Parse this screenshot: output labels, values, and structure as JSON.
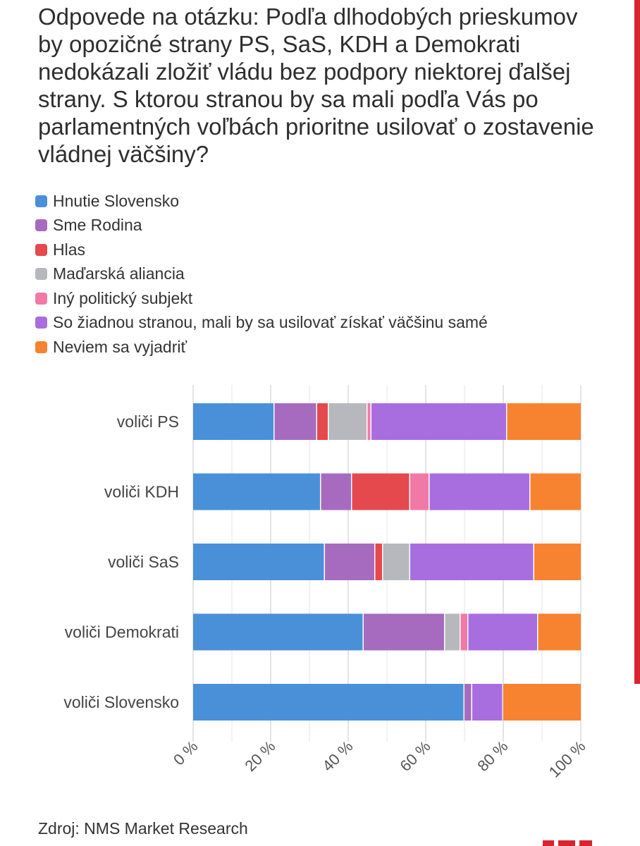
{
  "brand_color": "#d8242f",
  "chart_data": {
    "type": "bar",
    "orientation": "horizontal",
    "stacked": true,
    "title": "Odpovede na otázku: Podľa dlhodobých prieskumov by opozičné strany PS, SaS, KDH a Demokrati nedokázali zložiť vládu bez podpory niektorej ďalšej strany. S ktorou stranou by sa mali podľa Vás po parlamentných voľbách prioritne usilovať o zostavenie vládnej väčšiny?",
    "xlabel": "",
    "ylabel": "",
    "xlim": [
      0,
      100
    ],
    "ticks": [
      "0 %",
      "20 %",
      "40 %",
      "60 %",
      "80 %",
      "100 %"
    ],
    "tick_values": [
      0,
      20,
      40,
      60,
      80,
      100
    ],
    "grid": true,
    "legend_position": "top-left",
    "categories": [
      "voliči PS",
      "voliči KDH",
      "voliči SaS",
      "voliči Demokrati",
      "voliči Slovensko"
    ],
    "series": [
      {
        "name": "Hnutie Slovensko",
        "color": "#4a90d9",
        "values": [
          21,
          33,
          34,
          44,
          70
        ]
      },
      {
        "name": "Sme Rodina",
        "color": "#a66bbe",
        "values": [
          11,
          8,
          13,
          21,
          2
        ]
      },
      {
        "name": "Hlas",
        "color": "#e5484d",
        "values": [
          3,
          15,
          2,
          0,
          0
        ]
      },
      {
        "name": "Maďarská aliancia",
        "color": "#b6b8bd",
        "values": [
          10,
          0,
          7,
          4,
          0
        ]
      },
      {
        "name": "Iný politický subjekt",
        "color": "#f07aa5",
        "values": [
          1,
          5,
          0,
          2,
          0
        ]
      },
      {
        "name": "So žiadnou stranou, mali by sa usilovať získať väčšinu samé",
        "color": "#a86ee0",
        "values": [
          35,
          26,
          32,
          18,
          8
        ]
      },
      {
        "name": "Neviem sa vyjadriť",
        "color": "#f7822f",
        "values": [
          19,
          13,
          12,
          11,
          20
        ]
      }
    ]
  },
  "source": "Zdroj: NMS Market Research"
}
